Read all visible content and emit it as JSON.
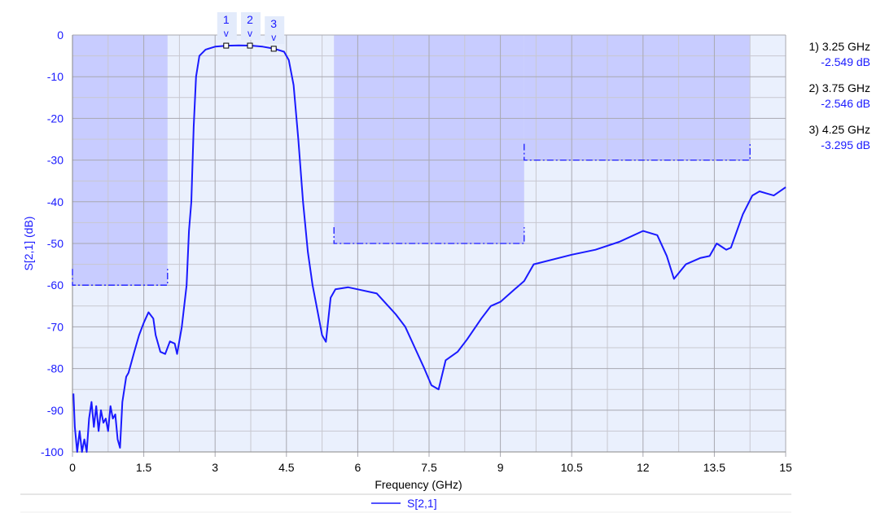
{
  "chart_data": {
    "type": "line",
    "xlabel": "Frequency (GHz)",
    "ylabel": "S[2,1] (dB)",
    "xlim": [
      0,
      15
    ],
    "ylim": [
      -100,
      0
    ],
    "xticks": [
      "0",
      "1.5",
      "3",
      "4.5",
      "6",
      "7.5",
      "9",
      "10.5",
      "12",
      "13.5",
      "15"
    ],
    "yticks": [
      "0",
      "-10",
      "-20",
      "-30",
      "-40",
      "-50",
      "-60",
      "-70",
      "-80",
      "-90",
      "-100"
    ],
    "grid": true,
    "legend_placement": "bottom",
    "colors": {
      "trace": "#1a1aff",
      "mask_fill": "#c8ccff",
      "plot_bg": "#eaf0fd",
      "grid": "#a8a8b0"
    },
    "series": [
      {
        "name": "S[2,1]",
        "x": [
          0.02,
          0.05,
          0.1,
          0.15,
          0.2,
          0.25,
          0.3,
          0.35,
          0.4,
          0.45,
          0.5,
          0.55,
          0.6,
          0.65,
          0.7,
          0.75,
          0.8,
          0.85,
          0.9,
          0.95,
          1.0,
          1.05,
          1.13,
          1.18,
          1.3,
          1.4,
          1.5,
          1.6,
          1.7,
          1.75,
          1.85,
          1.95,
          2.05,
          2.15,
          2.2,
          2.3,
          2.4,
          2.45,
          2.5,
          2.55,
          2.6,
          2.67,
          2.8,
          3.0,
          3.25,
          3.5,
          3.75,
          4.0,
          4.25,
          4.45,
          4.55,
          4.65,
          4.75,
          4.85,
          4.95,
          5.05,
          5.15,
          5.25,
          5.33,
          5.43,
          5.53,
          5.8,
          6.0,
          6.4,
          6.8,
          7.0,
          7.2,
          7.4,
          7.55,
          7.7,
          7.85,
          8.1,
          8.3,
          8.6,
          8.8,
          9.0,
          9.3,
          9.5,
          9.7,
          10.5,
          11.0,
          11.5,
          12.0,
          12.3,
          12.5,
          12.65,
          12.9,
          13.2,
          13.4,
          13.55,
          13.75,
          13.85,
          14.1,
          14.3,
          14.45,
          14.6,
          14.75,
          15.0
        ],
        "y": [
          -86,
          -94,
          -100,
          -95,
          -100,
          -97,
          -100,
          -92,
          -88,
          -94,
          -89,
          -95,
          -90,
          -93,
          -92,
          -95,
          -89,
          -92,
          -91,
          -97,
          -99,
          -88,
          -82,
          -81,
          -76,
          -72,
          -69,
          -66.5,
          -68,
          -72,
          -76,
          -76.5,
          -73.5,
          -74,
          -76.5,
          -70,
          -60,
          -47,
          -40,
          -22,
          -10,
          -5,
          -3.5,
          -2.8,
          -2.549,
          -2.5,
          -2.546,
          -2.8,
          -3.295,
          -4,
          -6,
          -12,
          -25,
          -40,
          -52,
          -60,
          -66,
          -72,
          -73.6,
          -63,
          -61,
          -60.5,
          -61,
          -62,
          -67,
          -70,
          -75,
          -80,
          -84,
          -85,
          -78,
          -76,
          -73,
          -68,
          -65,
          -64,
          -61,
          -59,
          -55,
          -52.7,
          -51.5,
          -49.6,
          -47,
          -48,
          -53,
          -58.5,
          -55,
          -53.5,
          -53,
          -50,
          -51.5,
          -51,
          -43,
          -38.5,
          -37.5,
          -38,
          -38.5,
          -36.5
        ]
      }
    ],
    "masks": [
      {
        "x": [
          0,
          2
        ],
        "limit": -60
      },
      {
        "x": [
          5.5,
          9.5
        ],
        "limit": -50
      },
      {
        "x": [
          9.5,
          14.25
        ],
        "limit": -30
      }
    ],
    "markers": [
      {
        "id": "1",
        "freq": 3.25,
        "value": -2.549,
        "freq_label": "1) 3.25 GHz",
        "value_label": "-2.549 dB"
      },
      {
        "id": "2",
        "freq": 3.75,
        "value": -2.546,
        "freq_label": "2) 3.75 GHz",
        "value_label": "-2.546 dB"
      },
      {
        "id": "3",
        "freq": 4.25,
        "value": -3.295,
        "freq_label": "3) 4.25 GHz",
        "value_label": "-3.295 dB"
      }
    ],
    "marker_arrow": "v"
  }
}
